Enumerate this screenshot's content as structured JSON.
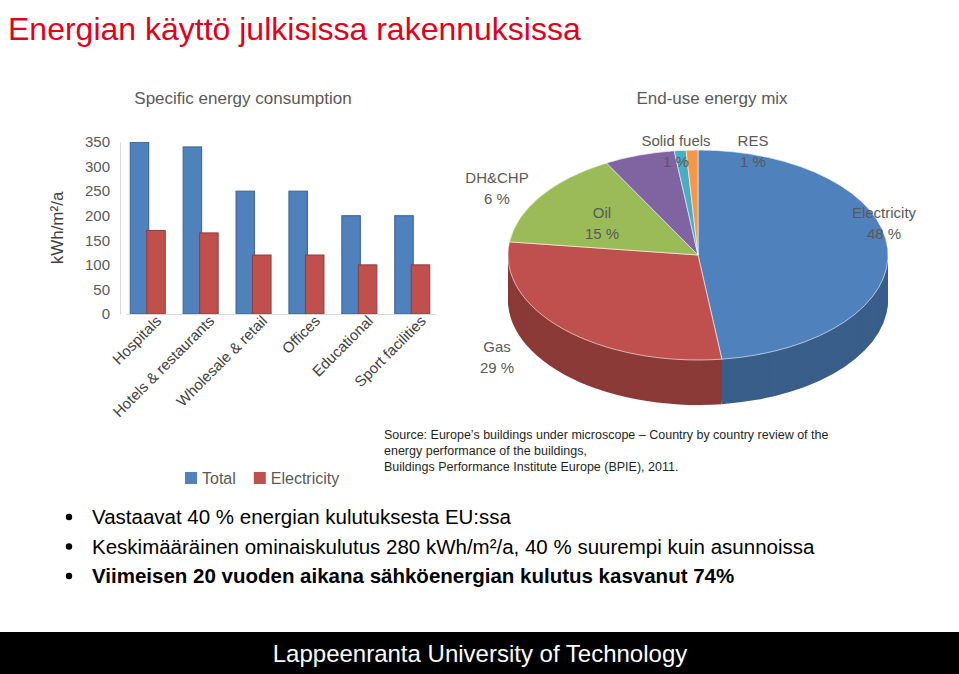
{
  "slide": {
    "title": "Energian käyttö julkisissa rakennuksissa",
    "bullets": [
      "Vastaavat 40 % energian kulutuksesta EU:ssa",
      "Keskimääräinen ominaiskulutus 280 kWh/m²/a, 40 % suurempi kuin asunnoissa",
      "Viimeisen 20 vuoden aikana sähköenergian kulutus kasvanut 74%"
    ],
    "source": [
      "Source: Europe’s buildings under microscope – Country by country review of the",
      "energy performance of the buildings,",
      "Buildings Performance Institute Europe (BPIE), 2011."
    ],
    "footer": "Lappeenranta University of Technology"
  },
  "chart_data": [
    {
      "type": "bar",
      "title": "Specific energy consumption",
      "ylabel": "kWh/m²/a",
      "categories": [
        "Hospitals",
        "Hotels & restaurants",
        "Wholesale & retail",
        "Offices",
        "Educational",
        "Sport facilities"
      ],
      "series": [
        {
          "name": "Total",
          "color": "#4f81bd",
          "values": [
            350,
            340,
            250,
            250,
            200,
            200
          ]
        },
        {
          "name": "Electricity",
          "color": "#c0504d",
          "values": [
            170,
            165,
            120,
            120,
            100,
            100
          ]
        }
      ],
      "ylim": [
        0,
        350
      ],
      "yticks": [
        0,
        50,
        100,
        150,
        200,
        250,
        300,
        350
      ],
      "grid": false,
      "legend": "bottom"
    },
    {
      "type": "pie",
      "title": "End-use energy mix",
      "categories": [
        "Electricity",
        "Gas",
        "Oil",
        "DH&CHP",
        "Solid fuels",
        "RES"
      ],
      "values": [
        48,
        29,
        15,
        6,
        1,
        1
      ],
      "value_labels": [
        "48 %",
        "29 %",
        "15 %",
        "6 %",
        "1 %",
        "1 %"
      ],
      "colors": [
        "#4f81bd",
        "#c0504d",
        "#9bbb59",
        "#8064a2",
        "#4bacc6",
        "#f79646"
      ],
      "data_labels": true
    }
  ]
}
